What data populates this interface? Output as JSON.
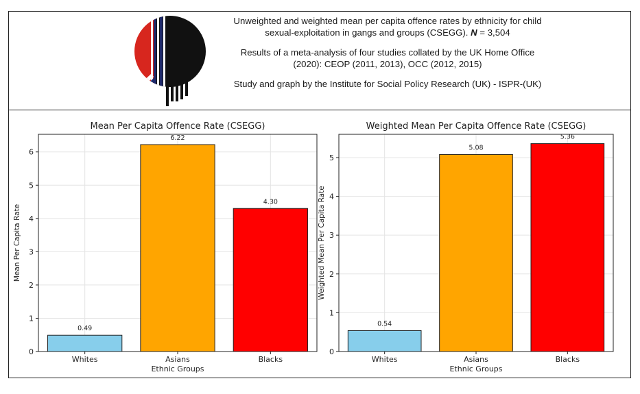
{
  "header": {
    "title_line1": "Unweighted and weighted mean per capita offence rates by ethnicity for child",
    "title_line2_pre": "sexual-exploitation in gangs and groups (CSEGG).",
    "n_label": "N",
    "n_value": "= 3,504",
    "meta_line1": "Results of a meta-analysis of four studies collated by the UK Home Office",
    "meta_line2": "(2020): CEOP (2011, 2013), OCC (2012, 2015)",
    "credit": "Study and graph by the Institute for Social Policy Research (UK) - ISPR-(UK)"
  },
  "colors": {
    "whites": "#87ceeb",
    "asians": "#ffa500",
    "blacks": "#ff0000",
    "logo_red": "#d7261e",
    "logo_navy": "#1f2a6b",
    "logo_black": "#111111"
  },
  "chart_data": [
    {
      "type": "bar",
      "title": "Mean Per Capita Offence Rate (CSEGG)",
      "xlabel": "Ethnic Groups",
      "ylabel": "Mean Per Capita Rate",
      "categories": [
        "Whites",
        "Asians",
        "Blacks"
      ],
      "values": [
        0.49,
        6.22,
        4.3
      ],
      "value_labels": [
        "0.49",
        "6.22",
        "4.30"
      ],
      "ylim": [
        0,
        6.53
      ],
      "yticks": [
        0,
        1,
        2,
        3,
        4,
        5,
        6
      ],
      "grid": true
    },
    {
      "type": "bar",
      "title": "Weighted Mean Per Capita Offence Rate (CSEGG)",
      "xlabel": "Ethnic Groups",
      "ylabel": "Weighted Mean Per Capita Rate",
      "categories": [
        "Whites",
        "Asians",
        "Blacks"
      ],
      "values": [
        0.54,
        5.08,
        5.36
      ],
      "value_labels": [
        "0.54",
        "5.08",
        "5.36"
      ],
      "ylim": [
        0,
        5.6
      ],
      "yticks": [
        0,
        1,
        2,
        3,
        4,
        5
      ],
      "grid": true
    }
  ]
}
